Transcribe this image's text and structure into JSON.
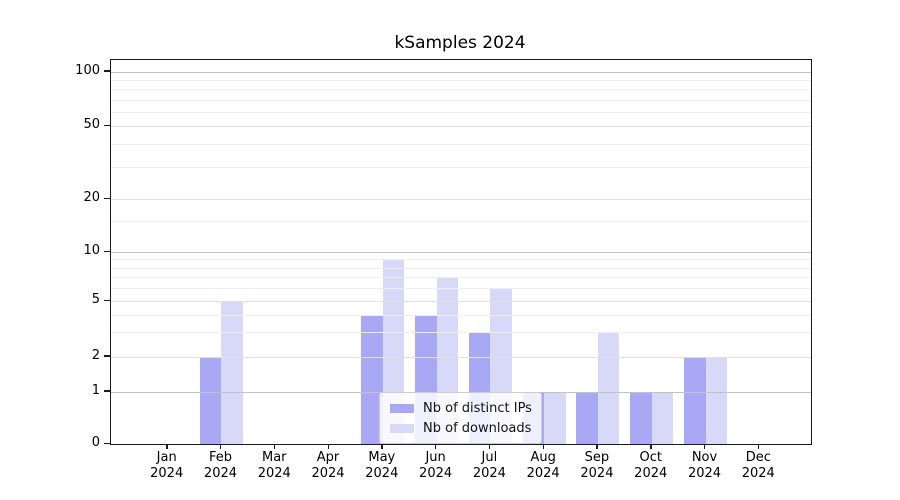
{
  "title": "kSamples 2024",
  "chart_data": {
    "type": "bar",
    "title": "kSamples 2024",
    "categories": [
      "Jan",
      "Feb",
      "Mar",
      "Apr",
      "May",
      "Jun",
      "Jul",
      "Aug",
      "Sep",
      "Oct",
      "Nov",
      "Dec"
    ],
    "category_year": "2024",
    "series": [
      {
        "name": "Nb of distinct IPs",
        "color": "#a8a8f4",
        "values": [
          0,
          2,
          0,
          0,
          4,
          4,
          3,
          1,
          1,
          1,
          2,
          0
        ]
      },
      {
        "name": "Nb of downloads",
        "color": "#d8d8f8",
        "values": [
          0,
          5,
          0,
          0,
          9,
          7,
          6,
          1,
          3,
          1,
          2,
          0
        ]
      }
    ],
    "xlabel": "",
    "ylabel": "",
    "y_ticks": [
      0,
      1,
      2,
      5,
      10,
      20,
      50,
      100
    ],
    "ylim": [
      0,
      110
    ],
    "y_scale": "log-like with 0 baseline",
    "grid": "horizontal major and minor, drawn above bars",
    "legend_position": "lower center inside plot"
  },
  "colors": {
    "series1": "#a8a8f4",
    "series2": "#d8d8f8",
    "grid_decade": "#c3c3c3",
    "grid_mid": "#e0e0e0",
    "grid_minor": "#efefef",
    "spine": "#1a1a1a",
    "background": "#ffffff"
  }
}
